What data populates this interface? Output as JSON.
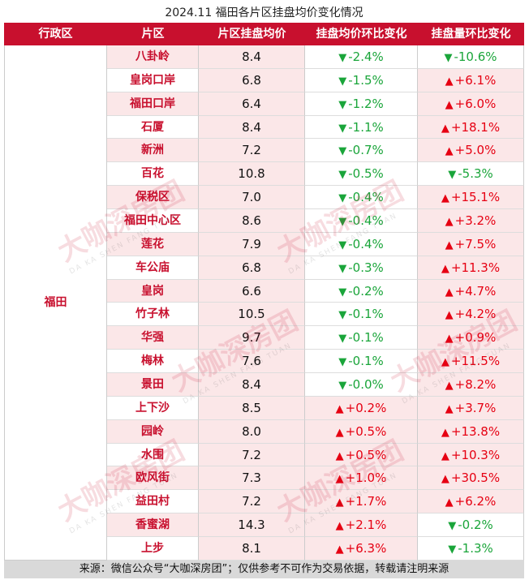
{
  "title": "2024.11 福田各片区挂盘均价变化情况",
  "headers": [
    "行政区",
    "片区",
    "片区挂盘均价",
    "挂盘均价环比变化",
    "挂盘量环比变化"
  ],
  "district": "福田",
  "footer": "来源：微信公众号“大咖深房团”；仅供参考不可作为交易依据，转载请注明来源",
  "watermark": {
    "text": "大咖深房团",
    "sub": "DA KA SHEN FANG TUAN"
  },
  "colors": {
    "header_bg": "#c8102e",
    "row_alt": "#fbe7e8",
    "up": "#e60012",
    "down": "#1aa53a"
  },
  "icons": {
    "down": "triangle-down-icon",
    "up": "triangle-up-icon"
  },
  "chart_data": {
    "type": "table",
    "columns": [
      "行政区",
      "片区",
      "片区挂盘均价",
      "挂盘均价环比变化",
      "挂盘量环比变化"
    ],
    "rows": [
      {
        "area": "八卦岭",
        "price": "8.4",
        "price_chg": "-2.4%",
        "price_dir": "down",
        "vol_chg": "-10.6%",
        "vol_dir": "down"
      },
      {
        "area": "皇岗口岸",
        "price": "6.8",
        "price_chg": "-1.5%",
        "price_dir": "down",
        "vol_chg": "+6.1%",
        "vol_dir": "up"
      },
      {
        "area": "福田口岸",
        "price": "6.4",
        "price_chg": "-1.2%",
        "price_dir": "down",
        "vol_chg": "+6.0%",
        "vol_dir": "up"
      },
      {
        "area": "石厦",
        "price": "8.4",
        "price_chg": "-1.1%",
        "price_dir": "down",
        "vol_chg": "+18.1%",
        "vol_dir": "up"
      },
      {
        "area": "新洲",
        "price": "7.2",
        "price_chg": "-0.7%",
        "price_dir": "down",
        "vol_chg": "+5.0%",
        "vol_dir": "up"
      },
      {
        "area": "百花",
        "price": "10.8",
        "price_chg": "-0.5%",
        "price_dir": "down",
        "vol_chg": "-5.3%",
        "vol_dir": "down"
      },
      {
        "area": "保税区",
        "price": "7.0",
        "price_chg": "-0.4%",
        "price_dir": "down",
        "vol_chg": "+15.1%",
        "vol_dir": "up"
      },
      {
        "area": "福田中心区",
        "price": "8.6",
        "price_chg": "-0.4%",
        "price_dir": "down",
        "vol_chg": "+3.2%",
        "vol_dir": "up"
      },
      {
        "area": "莲花",
        "price": "7.9",
        "price_chg": "-0.4%",
        "price_dir": "down",
        "vol_chg": "+7.5%",
        "vol_dir": "up"
      },
      {
        "area": "车公庙",
        "price": "6.8",
        "price_chg": "-0.3%",
        "price_dir": "down",
        "vol_chg": "+11.3%",
        "vol_dir": "up"
      },
      {
        "area": "皇岗",
        "price": "6.6",
        "price_chg": "-0.2%",
        "price_dir": "down",
        "vol_chg": "+4.7%",
        "vol_dir": "up"
      },
      {
        "area": "竹子林",
        "price": "10.5",
        "price_chg": "-0.1%",
        "price_dir": "down",
        "vol_chg": "+4.2%",
        "vol_dir": "up"
      },
      {
        "area": "华强",
        "price": "9.7",
        "price_chg": "-0.1%",
        "price_dir": "down",
        "vol_chg": "+0.9%",
        "vol_dir": "up"
      },
      {
        "area": "梅林",
        "price": "7.6",
        "price_chg": "-0.1%",
        "price_dir": "down",
        "vol_chg": "+11.5%",
        "vol_dir": "up"
      },
      {
        "area": "景田",
        "price": "8.4",
        "price_chg": "-0.0%",
        "price_dir": "down",
        "vol_chg": "+8.2%",
        "vol_dir": "up"
      },
      {
        "area": "上下沙",
        "price": "8.5",
        "price_chg": "+0.2%",
        "price_dir": "up",
        "vol_chg": "+3.7%",
        "vol_dir": "up"
      },
      {
        "area": "园岭",
        "price": "8.0",
        "price_chg": "+0.5%",
        "price_dir": "up",
        "vol_chg": "+13.8%",
        "vol_dir": "up"
      },
      {
        "area": "水围",
        "price": "7.2",
        "price_chg": "+0.5%",
        "price_dir": "up",
        "vol_chg": "+10.3%",
        "vol_dir": "up"
      },
      {
        "area": "欧风街",
        "price": "7.3",
        "price_chg": "+1.0%",
        "price_dir": "up",
        "vol_chg": "+30.5%",
        "vol_dir": "up"
      },
      {
        "area": "益田村",
        "price": "7.2",
        "price_chg": "+1.7%",
        "price_dir": "up",
        "vol_chg": "+6.2%",
        "vol_dir": "up"
      },
      {
        "area": "香蜜湖",
        "price": "14.3",
        "price_chg": "+2.1%",
        "price_dir": "up",
        "vol_chg": "-0.2%",
        "vol_dir": "down"
      },
      {
        "area": "上步",
        "price": "8.1",
        "price_chg": "+6.3%",
        "price_dir": "up",
        "vol_chg": "-1.3%",
        "vol_dir": "down"
      }
    ]
  }
}
